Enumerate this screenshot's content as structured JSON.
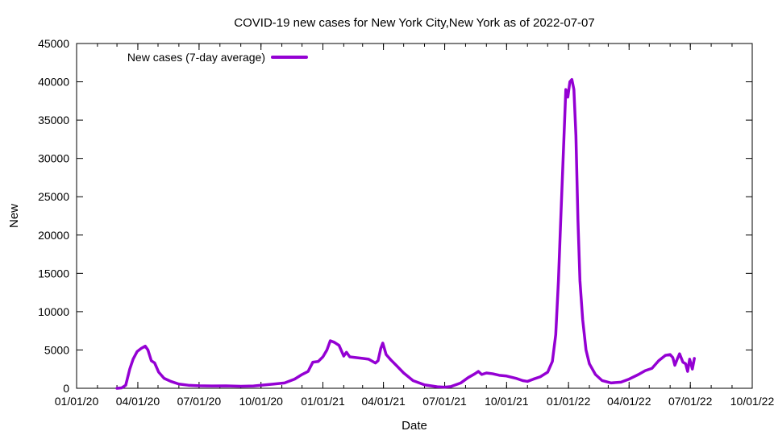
{
  "chart_data": {
    "type": "line",
    "title": "COVID-19 new cases for New York City,New York as of 2022-07-07",
    "xlabel": "Date",
    "ylabel": "New",
    "x_axis": {
      "kind": "date",
      "range": [
        "2020-01-01",
        "2022-10-01"
      ],
      "ticks": [
        {
          "date": "2020-01-01",
          "label": "01/01/20"
        },
        {
          "date": "2020-04-01",
          "label": "04/01/20"
        },
        {
          "date": "2020-07-01",
          "label": "07/01/20"
        },
        {
          "date": "2020-10-01",
          "label": "10/01/20"
        },
        {
          "date": "2021-01-01",
          "label": "01/01/21"
        },
        {
          "date": "2021-04-01",
          "label": "04/01/21"
        },
        {
          "date": "2021-07-01",
          "label": "07/01/21"
        },
        {
          "date": "2021-10-01",
          "label": "10/01/21"
        },
        {
          "date": "2022-01-01",
          "label": "01/01/22"
        },
        {
          "date": "2022-04-01",
          "label": "04/01/22"
        },
        {
          "date": "2022-07-01",
          "label": "07/01/22"
        },
        {
          "date": "2022-10-01",
          "label": "10/01/22"
        }
      ]
    },
    "y_axis": {
      "range": [
        0,
        45000
      ],
      "ticks": [
        0,
        5000,
        10000,
        15000,
        20000,
        25000,
        30000,
        35000,
        40000,
        45000
      ]
    },
    "grid": false,
    "legend_position": "top-left",
    "series": [
      {
        "name": "New cases (7-day average)",
        "color": "#9400d3",
        "points": [
          [
            "2020-03-01",
            0
          ],
          [
            "2020-03-08",
            50
          ],
          [
            "2020-03-14",
            400
          ],
          [
            "2020-03-20",
            2500
          ],
          [
            "2020-03-25",
            3800
          ],
          [
            "2020-03-31",
            4800
          ],
          [
            "2020-04-06",
            5200
          ],
          [
            "2020-04-12",
            5500
          ],
          [
            "2020-04-16",
            5000
          ],
          [
            "2020-04-21",
            3600
          ],
          [
            "2020-04-26",
            3300
          ],
          [
            "2020-05-02",
            2100
          ],
          [
            "2020-05-10",
            1300
          ],
          [
            "2020-05-20",
            900
          ],
          [
            "2020-06-01",
            550
          ],
          [
            "2020-06-15",
            400
          ],
          [
            "2020-07-01",
            330
          ],
          [
            "2020-07-20",
            300
          ],
          [
            "2020-08-10",
            320
          ],
          [
            "2020-09-01",
            260
          ],
          [
            "2020-09-20",
            300
          ],
          [
            "2020-10-01",
            400
          ],
          [
            "2020-10-20",
            550
          ],
          [
            "2020-11-05",
            700
          ],
          [
            "2020-11-20",
            1200
          ],
          [
            "2020-12-01",
            1800
          ],
          [
            "2020-12-10",
            2200
          ],
          [
            "2020-12-17",
            3400
          ],
          [
            "2020-12-25",
            3500
          ],
          [
            "2021-01-01",
            4100
          ],
          [
            "2021-01-07",
            5000
          ],
          [
            "2021-01-12",
            6200
          ],
          [
            "2021-01-18",
            6000
          ],
          [
            "2021-01-25",
            5600
          ],
          [
            "2021-02-01",
            4200
          ],
          [
            "2021-02-05",
            4700
          ],
          [
            "2021-02-10",
            4100
          ],
          [
            "2021-02-20",
            4000
          ],
          [
            "2021-03-01",
            3900
          ],
          [
            "2021-03-10",
            3800
          ],
          [
            "2021-03-20",
            3300
          ],
          [
            "2021-03-24",
            3600
          ],
          [
            "2021-03-28",
            5200
          ],
          [
            "2021-03-31",
            5900
          ],
          [
            "2021-04-05",
            4400
          ],
          [
            "2021-04-12",
            3700
          ],
          [
            "2021-04-20",
            3000
          ],
          [
            "2021-05-01",
            2000
          ],
          [
            "2021-05-15",
            1000
          ],
          [
            "2021-06-01",
            450
          ],
          [
            "2021-06-20",
            200
          ],
          [
            "2021-07-01",
            150
          ],
          [
            "2021-07-10",
            220
          ],
          [
            "2021-07-25",
            700
          ],
          [
            "2021-08-05",
            1400
          ],
          [
            "2021-08-15",
            1900
          ],
          [
            "2021-08-20",
            2200
          ],
          [
            "2021-08-25",
            1800
          ],
          [
            "2021-09-01",
            2000
          ],
          [
            "2021-09-10",
            1900
          ],
          [
            "2021-09-20",
            1700
          ],
          [
            "2021-10-01",
            1600
          ],
          [
            "2021-10-15",
            1300
          ],
          [
            "2021-10-25",
            1000
          ],
          [
            "2021-11-01",
            900
          ],
          [
            "2021-11-10",
            1200
          ],
          [
            "2021-11-20",
            1500
          ],
          [
            "2021-12-01",
            2100
          ],
          [
            "2021-12-08",
            3500
          ],
          [
            "2021-12-13",
            7000
          ],
          [
            "2021-12-17",
            14000
          ],
          [
            "2021-12-20",
            21000
          ],
          [
            "2021-12-24",
            30000
          ],
          [
            "2021-12-28",
            39000
          ],
          [
            "2021-12-31",
            38000
          ],
          [
            "2022-01-03",
            40000
          ],
          [
            "2022-01-06",
            40300
          ],
          [
            "2022-01-09",
            39000
          ],
          [
            "2022-01-12",
            33000
          ],
          [
            "2022-01-15",
            22000
          ],
          [
            "2022-01-18",
            14000
          ],
          [
            "2022-01-22",
            9000
          ],
          [
            "2022-01-27",
            5000
          ],
          [
            "2022-02-01",
            3200
          ],
          [
            "2022-02-10",
            1800
          ],
          [
            "2022-02-20",
            1000
          ],
          [
            "2022-03-05",
            700
          ],
          [
            "2022-03-20",
            800
          ],
          [
            "2022-04-01",
            1200
          ],
          [
            "2022-04-15",
            1800
          ],
          [
            "2022-04-25",
            2300
          ],
          [
            "2022-05-05",
            2600
          ],
          [
            "2022-05-15",
            3600
          ],
          [
            "2022-05-25",
            4300
          ],
          [
            "2022-06-01",
            4400
          ],
          [
            "2022-06-05",
            4000
          ],
          [
            "2022-06-08",
            3000
          ],
          [
            "2022-06-12",
            3900
          ],
          [
            "2022-06-15",
            4500
          ],
          [
            "2022-06-20",
            3400
          ],
          [
            "2022-06-24",
            3200
          ],
          [
            "2022-06-27",
            2200
          ],
          [
            "2022-06-30",
            3800
          ],
          [
            "2022-07-02",
            3200
          ],
          [
            "2022-07-04",
            2500
          ],
          [
            "2022-07-07",
            3900
          ]
        ]
      }
    ]
  }
}
